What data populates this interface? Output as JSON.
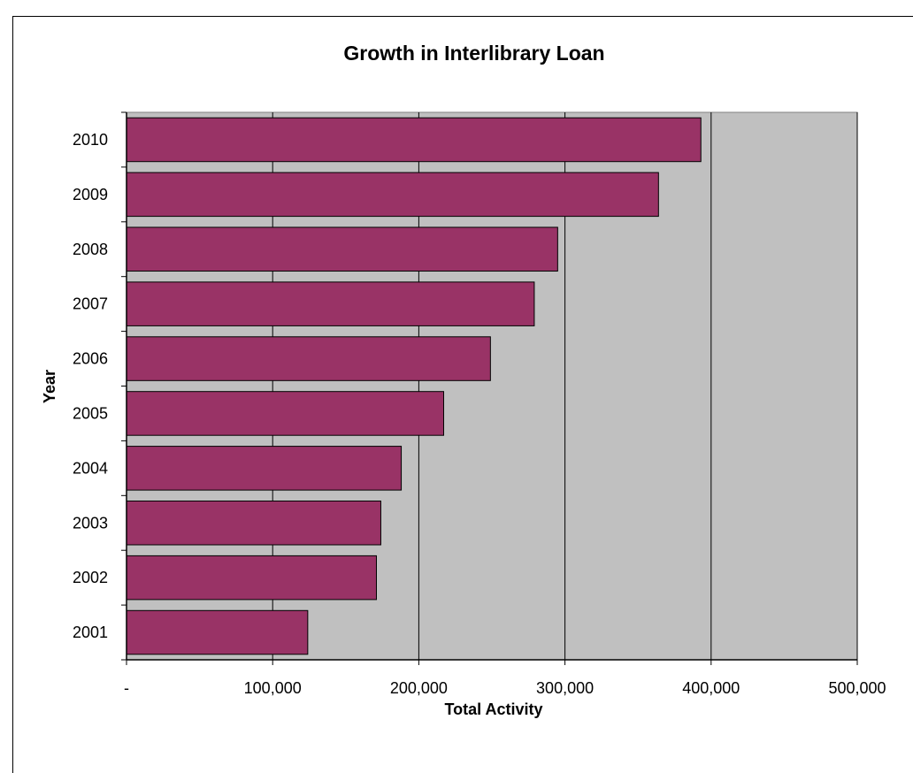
{
  "chart_data": {
    "type": "bar",
    "orientation": "horizontal",
    "title": "Growth in Interlibrary Loan",
    "xlabel": "Total Activity",
    "ylabel": "Year",
    "categories": [
      "2001",
      "2002",
      "2003",
      "2004",
      "2005",
      "2006",
      "2007",
      "2008",
      "2009",
      "2010"
    ],
    "values": [
      124000,
      171000,
      174000,
      188000,
      217000,
      249000,
      279000,
      295000,
      364000,
      393000
    ],
    "xlim": [
      0,
      500000
    ],
    "xticks": [
      0,
      100000,
      200000,
      300000,
      400000,
      500000
    ],
    "xtick_labels": [
      "-",
      "100,000",
      "200,000",
      "300,000",
      "400,000",
      "500,000"
    ],
    "grid": "vertical",
    "legend": "none",
    "colors": {
      "bar": "#993366",
      "plot_background": "#c0c0c0",
      "gridline": "#000000"
    }
  }
}
